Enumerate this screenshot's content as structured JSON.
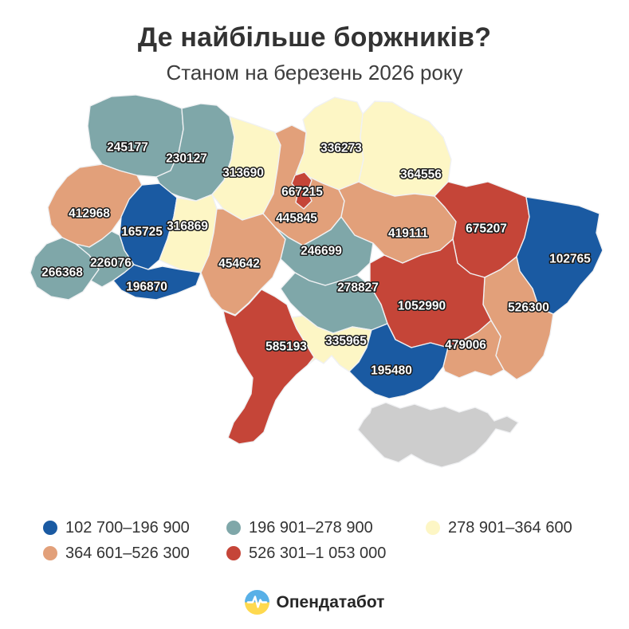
{
  "title": "Де найбільше боржників?",
  "subtitle": "Станом на березень 2026 року",
  "palette": {
    "b1": "#1a5aa2",
    "b2": "#7fa7a9",
    "b3": "#fdf6c5",
    "b4": "#e2a07a",
    "b5": "#c54538",
    "nodata": "#cdcdcd"
  },
  "label_style": {
    "fill": "#ffffff",
    "outline": "#1a1a1a"
  },
  "regions": [
    {
      "id": "volyn",
      "value": "245177",
      "bucket": "b2"
    },
    {
      "id": "rivne",
      "value": "230127",
      "bucket": "b2"
    },
    {
      "id": "zhytomyr",
      "value": "313690",
      "bucket": "b3"
    },
    {
      "id": "chernihiv",
      "value": "336273",
      "bucket": "b3"
    },
    {
      "id": "sumy",
      "value": "364556",
      "bucket": "b3"
    },
    {
      "id": "kyiv-oblast",
      "value": "445845",
      "bucket": "b4"
    },
    {
      "id": "kyiv-city",
      "value": "667215",
      "bucket": "b5"
    },
    {
      "id": "lviv",
      "value": "412968",
      "bucket": "b4"
    },
    {
      "id": "ternopil",
      "value": "165725",
      "bucket": "b1"
    },
    {
      "id": "khmelnytskyi",
      "value": "316869",
      "bucket": "b3"
    },
    {
      "id": "vinnytsia",
      "value": "454642",
      "bucket": "b4"
    },
    {
      "id": "zakarpattia",
      "value": "266368",
      "bucket": "b2"
    },
    {
      "id": "ivano-frankivsk",
      "value": "226076",
      "bucket": "b2"
    },
    {
      "id": "chernivtsi",
      "value": "196870",
      "bucket": "b1"
    },
    {
      "id": "cherkasy",
      "value": "246699",
      "bucket": "b2"
    },
    {
      "id": "poltava",
      "value": "419111",
      "bucket": "b4"
    },
    {
      "id": "kharkiv",
      "value": "675207",
      "bucket": "b5"
    },
    {
      "id": "luhansk",
      "value": "102765",
      "bucket": "b1"
    },
    {
      "id": "donetsk",
      "value": "526300",
      "bucket": "b4"
    },
    {
      "id": "dnipropetrovsk",
      "value": "1052990",
      "bucket": "b5"
    },
    {
      "id": "kirovohrad",
      "value": "278827",
      "bucket": "b2"
    },
    {
      "id": "odesa",
      "value": "585193",
      "bucket": "b5"
    },
    {
      "id": "mykolaiv",
      "value": "335965",
      "bucket": "b3"
    },
    {
      "id": "kherson",
      "value": "195480",
      "bucket": "b1"
    },
    {
      "id": "zaporizhzhia",
      "value": "479006",
      "bucket": "b4"
    },
    {
      "id": "crimea",
      "value": "",
      "bucket": "nodata"
    }
  ],
  "legend": [
    {
      "bucket": "b1",
      "label": "102 700–196 900"
    },
    {
      "bucket": "b2",
      "label": "196 901–278 900"
    },
    {
      "bucket": "b3",
      "label": "278 901–364 600"
    },
    {
      "bucket": "b4",
      "label": "364 601–526 300"
    },
    {
      "bucket": "b5",
      "label": "526 301–1 053 000"
    }
  ],
  "footer": {
    "brand": "Опендатабот"
  },
  "chart_data": {
    "type": "choropleth-map",
    "title": "Де найбільше боржників?",
    "subtitle": "Станом на березень 2026 року",
    "unit": "debtors",
    "no_data_region": "crimea",
    "values": {
      "volyn": 245177,
      "rivne": 230127,
      "zhytomyr": 313690,
      "chernihiv": 336273,
      "sumy": 364556,
      "kyiv-oblast": 445845,
      "kyiv-city": 667215,
      "lviv": 412968,
      "ternopil": 165725,
      "khmelnytskyi": 316869,
      "vinnytsia": 454642,
      "zakarpattia": 266368,
      "ivano-frankivsk": 226076,
      "chernivtsi": 196870,
      "cherkasy": 246699,
      "poltava": 419111,
      "kharkiv": 675207,
      "luhansk": 102765,
      "donetsk": 526300,
      "dnipropetrovsk": 1052990,
      "kirovohrad": 278827,
      "odesa": 585193,
      "mykolaiv": 335965,
      "kherson": 195480,
      "zaporizhzhia": 479006
    },
    "bins": [
      {
        "range": "102 700–196 900",
        "color": "#1a5aa2"
      },
      {
        "range": "196 901–278 900",
        "color": "#7fa7a9"
      },
      {
        "range": "278 901–364 600",
        "color": "#fdf6c5"
      },
      {
        "range": "364 601–526 300",
        "color": "#e2a07a"
      },
      {
        "range": "526 301–1 053 000",
        "color": "#c54538"
      }
    ],
    "legend_position": "bottom"
  }
}
